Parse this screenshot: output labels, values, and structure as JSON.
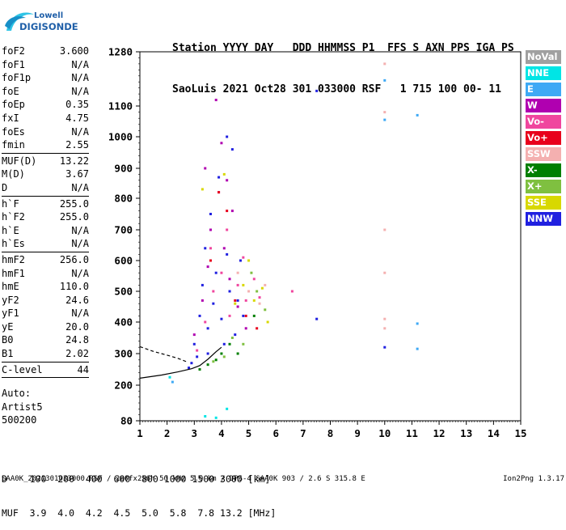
{
  "logo": {
    "line1": "Lowell",
    "line2": "DIGISONDE"
  },
  "header": {
    "labels": "Station YYYY DAY   DDD HHMMSS P1  FFS S AXN PPS IGA PS",
    "values": "SaoLuis 2021 Oct28 301 033000 RSF   1 715 100 00- 11"
  },
  "params": {
    "group1": [
      {
        "name": "foF2",
        "value": "3.600"
      },
      {
        "name": "foF1",
        "value": "N/A"
      },
      {
        "name": "foF1p",
        "value": "N/A"
      },
      {
        "name": "foE",
        "value": "N/A"
      },
      {
        "name": "foEp",
        "value": "0.35"
      },
      {
        "name": "fxI",
        "value": "4.75"
      },
      {
        "name": "foEs",
        "value": "N/A"
      },
      {
        "name": "fmin",
        "value": "2.55"
      }
    ],
    "group2": [
      {
        "name": "MUF(D)",
        "value": "13.22"
      },
      {
        "name": "M(D)",
        "value": "3.67"
      },
      {
        "name": "D",
        "value": "N/A"
      }
    ],
    "group3": [
      {
        "name": "h`F",
        "value": "255.0"
      },
      {
        "name": "h`F2",
        "value": "255.0"
      },
      {
        "name": "h`E",
        "value": "N/A"
      },
      {
        "name": "h`Es",
        "value": "N/A"
      }
    ],
    "group4": [
      {
        "name": "hmF2",
        "value": "256.0"
      },
      {
        "name": "hmF1",
        "value": "N/A"
      },
      {
        "name": "hmE",
        "value": "110.0"
      },
      {
        "name": "yF2",
        "value": "24.6"
      },
      {
        "name": "yF1",
        "value": "N/A"
      },
      {
        "name": "yE",
        "value": "20.0"
      },
      {
        "name": "B0",
        "value": "24.8"
      },
      {
        "name": "B1",
        "value": "2.02"
      }
    ],
    "group5": [
      {
        "name": "C-level",
        "value": "44"
      }
    ]
  },
  "extra": {
    "line1": "Auto:",
    "line2": "Artist5",
    "line3": "500200"
  },
  "legend": [
    {
      "label": "NoVal",
      "color": "#a0a0a0"
    },
    {
      "label": "NNE",
      "color": "#00e5e5"
    },
    {
      "label": "E",
      "color": "#3ea9f5"
    },
    {
      "label": "W",
      "color": "#b000b0"
    },
    {
      "label": "Vo-",
      "color": "#f0469e"
    },
    {
      "label": "Vo+",
      "color": "#e8001c"
    },
    {
      "label": "SSW",
      "color": "#f4b0b0"
    },
    {
      "label": "X-",
      "color": "#007f00"
    },
    {
      "label": "X+",
      "color": "#7fc040"
    },
    {
      "label": "SSE",
      "color": "#d8d800"
    },
    {
      "label": "NNW",
      "color": "#2020e0"
    }
  ],
  "bottom": {
    "d_line": "D    100  200  400  600  800 1000 1500 3000 [km]",
    "muf_line": "MUF  3.9  4.0  4.2  4.5  5.0  5.8  7.8 13.2 [MHz]"
  },
  "footer": {
    "left": "SAA0K_2021301033000.RSF / 280fx256h 50 kHz 5.0 km / DPS-4 SAA0K 903 / 2.6 S 315.8 E",
    "right": "Ion2Png 1.3.17"
  },
  "chart_data": {
    "type": "scatter",
    "xlim": [
      1,
      15
    ],
    "ylim": [
      80,
      1280
    ],
    "x_ticks": [
      1,
      2,
      3,
      4,
      5,
      6,
      7,
      8,
      9,
      10,
      11,
      12,
      13,
      14,
      15
    ],
    "y_ticks": [
      80,
      200,
      300,
      400,
      500,
      600,
      700,
      800,
      900,
      1000,
      1100,
      1280
    ],
    "grid": true,
    "series": [
      {
        "name": "NNW",
        "points": [
          [
            2.9,
            270
          ],
          [
            3.0,
            330
          ],
          [
            3.2,
            420
          ],
          [
            3.3,
            520
          ],
          [
            3.4,
            640
          ],
          [
            3.5,
            380
          ],
          [
            3.6,
            750
          ],
          [
            3.7,
            460
          ],
          [
            3.8,
            560
          ],
          [
            3.9,
            870
          ],
          [
            4.0,
            410
          ],
          [
            4.1,
            330
          ],
          [
            4.2,
            620
          ],
          [
            4.3,
            500
          ],
          [
            4.4,
            960
          ],
          [
            4.5,
            360
          ],
          [
            4.6,
            470
          ],
          [
            4.7,
            600
          ],
          [
            4.8,
            420
          ],
          [
            3.1,
            290
          ],
          [
            3.5,
            300
          ],
          [
            2.8,
            255
          ],
          [
            4.2,
            1000
          ],
          [
            7.5,
            410
          ],
          [
            7.5,
            1150
          ],
          [
            10.0,
            320
          ]
        ]
      },
      {
        "name": "W",
        "points": [
          [
            3.0,
            360
          ],
          [
            3.3,
            470
          ],
          [
            3.5,
            580
          ],
          [
            3.6,
            700
          ],
          [
            3.8,
            1120
          ],
          [
            3.9,
            820
          ],
          [
            4.1,
            640
          ],
          [
            4.3,
            540
          ],
          [
            4.6,
            450
          ],
          [
            4.9,
            380
          ],
          [
            3.4,
            900
          ],
          [
            4.0,
            980
          ],
          [
            4.4,
            760
          ],
          [
            4.2,
            860
          ]
        ]
      },
      {
        "name": "Vo-",
        "points": [
          [
            3.1,
            310
          ],
          [
            3.4,
            400
          ],
          [
            3.7,
            500
          ],
          [
            4.0,
            560
          ],
          [
            4.3,
            420
          ],
          [
            4.6,
            520
          ],
          [
            4.9,
            470
          ],
          [
            5.2,
            540
          ],
          [
            5.4,
            480
          ],
          [
            3.6,
            640
          ],
          [
            4.2,
            700
          ],
          [
            4.8,
            610
          ],
          [
            6.6,
            500
          ]
        ]
      },
      {
        "name": "Vo+",
        "points": [
          [
            3.9,
            820
          ],
          [
            4.2,
            760
          ],
          [
            3.6,
            600
          ],
          [
            4.5,
            470
          ],
          [
            4.9,
            420
          ],
          [
            5.3,
            380
          ]
        ]
      },
      {
        "name": "SSW",
        "points": [
          [
            4.6,
            560
          ],
          [
            5.0,
            500
          ],
          [
            5.4,
            460
          ],
          [
            5.6,
            520
          ],
          [
            10.0,
            1240
          ],
          [
            10.0,
            1080
          ],
          [
            10.0,
            700
          ],
          [
            10.0,
            560
          ],
          [
            10.0,
            410
          ],
          [
            10.0,
            380
          ]
        ]
      },
      {
        "name": "X-",
        "points": [
          [
            3.2,
            250
          ],
          [
            3.5,
            265
          ],
          [
            3.8,
            280
          ],
          [
            4.3,
            330
          ],
          [
            4.6,
            300
          ],
          [
            5.2,
            420
          ],
          [
            4.0,
            300
          ]
        ]
      },
      {
        "name": "X+",
        "points": [
          [
            4.1,
            290
          ],
          [
            4.4,
            350
          ],
          [
            4.8,
            330
          ],
          [
            5.3,
            500
          ],
          [
            5.6,
            440
          ],
          [
            3.7,
            275
          ],
          [
            5.1,
            560
          ]
        ]
      },
      {
        "name": "SSE",
        "points": [
          [
            4.5,
            460
          ],
          [
            4.8,
            520
          ],
          [
            5.2,
            470
          ],
          [
            5.5,
            510
          ],
          [
            5.7,
            400
          ],
          [
            4.1,
            880
          ],
          [
            3.3,
            830
          ],
          [
            5.0,
            600
          ]
        ]
      },
      {
        "name": "E",
        "points": [
          [
            2.2,
            210
          ],
          [
            10.0,
            1185
          ],
          [
            11.2,
            1070
          ],
          [
            11.2,
            395
          ],
          [
            11.2,
            315
          ],
          [
            10.0,
            1055
          ]
        ]
      },
      {
        "name": "NNE",
        "points": [
          [
            3.4,
            95
          ],
          [
            3.8,
            90
          ],
          [
            4.2,
            120
          ],
          [
            2.1,
            225
          ]
        ]
      }
    ],
    "traces": [
      {
        "name": "model-profile-solid",
        "points": [
          [
            1.0,
            222
          ],
          [
            1.8,
            232
          ],
          [
            2.4,
            242
          ],
          [
            2.9,
            252
          ],
          [
            3.2,
            262
          ],
          [
            3.5,
            282
          ],
          [
            3.8,
            306
          ],
          [
            4.0,
            320
          ]
        ]
      },
      {
        "name": "model-profile-dashed",
        "points": [
          [
            1.0,
            322
          ],
          [
            1.5,
            307
          ],
          [
            2.0,
            295
          ],
          [
            2.4,
            285
          ],
          [
            2.7,
            275
          ]
        ]
      }
    ]
  }
}
